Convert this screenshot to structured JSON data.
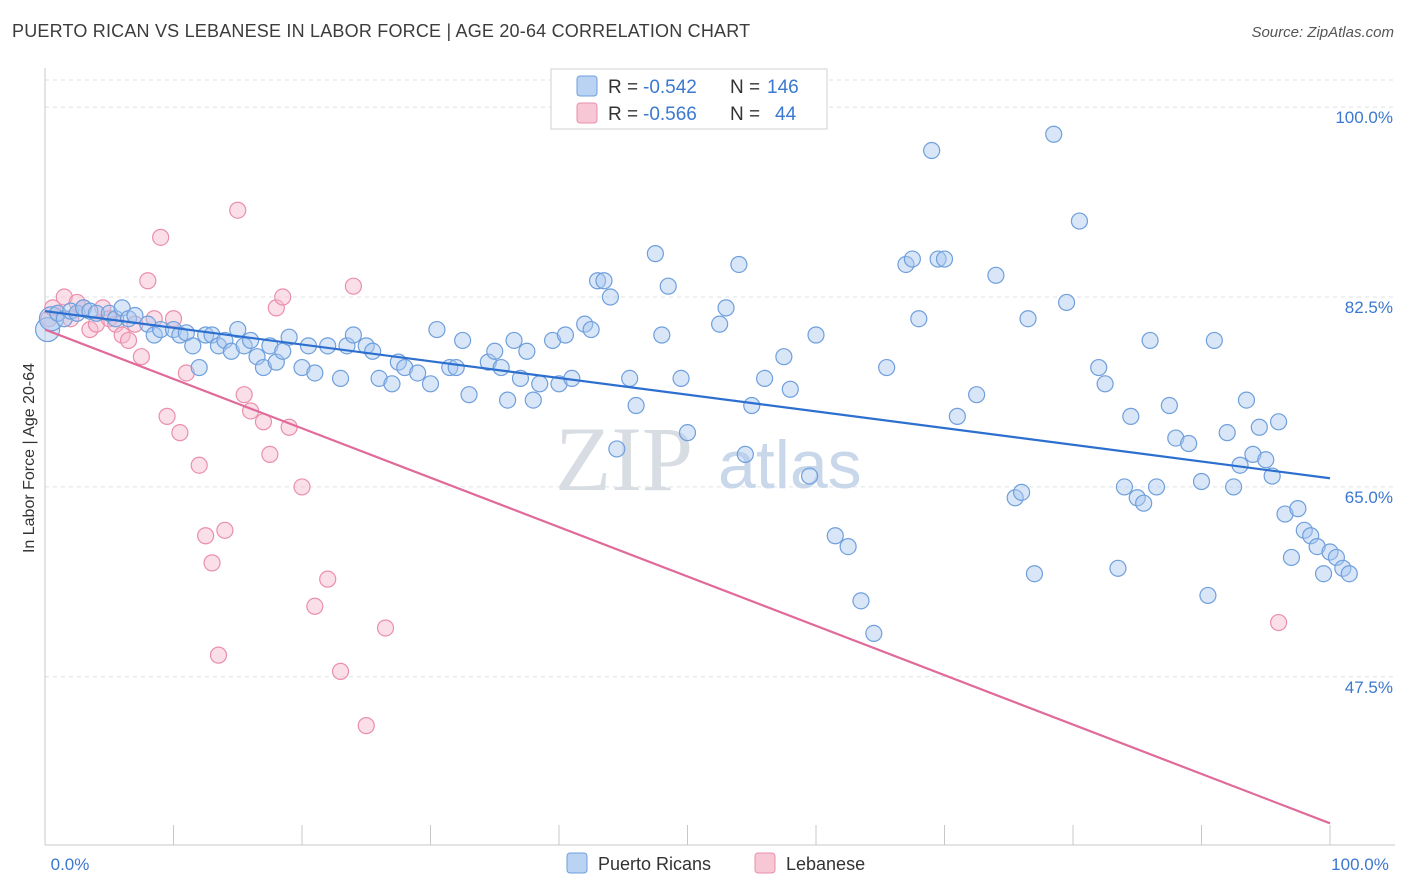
{
  "title": "PUERTO RICAN VS LEBANESE IN LABOR FORCE | AGE 20-64 CORRELATION CHART",
  "source": "Source: ZipAtlas.com",
  "colors": {
    "blue_fill": "#a9c8f0",
    "blue_stroke": "#6f9fdc",
    "blue_line": "#2c6fcf",
    "pink_fill": "#f6b9cc",
    "pink_stroke": "#ea8fab",
    "pink_line": "#e06a99",
    "axis_text": "#3b78d0"
  },
  "legend": {
    "rows": [
      {
        "r_label": "R =",
        "r_value": "-0.542",
        "n_label": "N =",
        "n_value": "146"
      },
      {
        "r_label": "R =",
        "r_value": "-0.566",
        "n_label": "N =",
        "n_value": "44"
      }
    ]
  },
  "bottom_legend": [
    "Puerto Ricans",
    "Lebanese"
  ],
  "watermark": {
    "zip": "ZIP",
    "atlas": "atlas"
  },
  "chart_data": {
    "type": "scatter",
    "title": "PUERTO RICAN VS LEBANESE IN LABOR FORCE | AGE 20-64 CORRELATION CHART",
    "xlabel": "",
    "ylabel": "In Labor Force | Age 20-64",
    "xlim": [
      0,
      100
    ],
    "ylim": [
      32,
      102.5
    ],
    "x_tick_labels": [
      "0.0%",
      "100.0%"
    ],
    "y_ticks": [
      47.5,
      65.0,
      82.5,
      100.0
    ],
    "y_tick_labels": [
      "47.5%",
      "65.0%",
      "82.5%",
      "100.0%"
    ],
    "grid": true,
    "series": [
      {
        "name": "Puerto Ricans",
        "color": "#a9c8f0",
        "r": -0.542,
        "n": 146,
        "trend": {
          "x": [
            0,
            100
          ],
          "y": [
            81.2,
            65.8
          ]
        },
        "points": [
          [
            0.2,
            79.5
          ],
          [
            0.5,
            80.5
          ],
          [
            1.0,
            81.0
          ],
          [
            1.5,
            80.5
          ],
          [
            2.0,
            81.2
          ],
          [
            2.5,
            81.0
          ],
          [
            3.0,
            81.5
          ],
          [
            3.5,
            81.2
          ],
          [
            4.0,
            81.0
          ],
          [
            5.0,
            81.0
          ],
          [
            5.5,
            80.5
          ],
          [
            6.0,
            81.5
          ],
          [
            6.5,
            80.5
          ],
          [
            7.0,
            80.8
          ],
          [
            8.0,
            80.0
          ],
          [
            8.5,
            79.0
          ],
          [
            9.0,
            79.5
          ],
          [
            10.0,
            79.5
          ],
          [
            10.5,
            79.0
          ],
          [
            11.0,
            79.2
          ],
          [
            11.5,
            78.0
          ],
          [
            12.0,
            76.0
          ],
          [
            12.5,
            79.0
          ],
          [
            13.0,
            79.0
          ],
          [
            13.5,
            78.0
          ],
          [
            14.0,
            78.5
          ],
          [
            14.5,
            77.5
          ],
          [
            15.0,
            79.5
          ],
          [
            15.5,
            78.0
          ],
          [
            16.0,
            78.5
          ],
          [
            16.5,
            77.0
          ],
          [
            17.0,
            76.0
          ],
          [
            17.5,
            78.0
          ],
          [
            18.0,
            76.5
          ],
          [
            18.5,
            77.5
          ],
          [
            19.0,
            78.8
          ],
          [
            20.0,
            76.0
          ],
          [
            20.5,
            78.0
          ],
          [
            21.0,
            75.5
          ],
          [
            22.0,
            78.0
          ],
          [
            23.0,
            75.0
          ],
          [
            23.5,
            78.0
          ],
          [
            24.0,
            79.0
          ],
          [
            25.0,
            78.0
          ],
          [
            25.5,
            77.5
          ],
          [
            26.0,
            75.0
          ],
          [
            27.0,
            74.5
          ],
          [
            27.5,
            76.5
          ],
          [
            28.0,
            76.0
          ],
          [
            29.0,
            75.5
          ],
          [
            30.0,
            74.5
          ],
          [
            30.5,
            79.5
          ],
          [
            31.5,
            76.0
          ],
          [
            32.0,
            76.0
          ],
          [
            32.5,
            78.5
          ],
          [
            33.0,
            73.5
          ],
          [
            34.5,
            76.5
          ],
          [
            35.0,
            77.5
          ],
          [
            35.5,
            76.0
          ],
          [
            36.0,
            73.0
          ],
          [
            36.5,
            78.5
          ],
          [
            37.0,
            75.0
          ],
          [
            37.5,
            77.5
          ],
          [
            38.0,
            73.0
          ],
          [
            38.5,
            74.5
          ],
          [
            39.5,
            78.5
          ],
          [
            40.0,
            74.5
          ],
          [
            40.5,
            79.0
          ],
          [
            41.0,
            75.0
          ],
          [
            42.0,
            80.0
          ],
          [
            42.5,
            79.5
          ],
          [
            43.0,
            84.0
          ],
          [
            43.5,
            84.0
          ],
          [
            44.0,
            82.5
          ],
          [
            44.5,
            68.5
          ],
          [
            45.5,
            75.0
          ],
          [
            46.0,
            72.5
          ],
          [
            47.5,
            86.5
          ],
          [
            48.0,
            79.0
          ],
          [
            48.5,
            83.5
          ],
          [
            49.5,
            75.0
          ],
          [
            50.0,
            70.0
          ],
          [
            52.5,
            80.0
          ],
          [
            53.0,
            81.5
          ],
          [
            54.0,
            85.5
          ],
          [
            54.5,
            68.0
          ],
          [
            55.0,
            72.5
          ],
          [
            56.0,
            75.0
          ],
          [
            57.5,
            77.0
          ],
          [
            58.0,
            74.0
          ],
          [
            59.5,
            66.0
          ],
          [
            60.0,
            79.0
          ],
          [
            61.5,
            60.5
          ],
          [
            62.5,
            59.5
          ],
          [
            63.5,
            54.5
          ],
          [
            64.5,
            51.5
          ],
          [
            65.5,
            76.0
          ],
          [
            67.0,
            85.5
          ],
          [
            67.5,
            86.0
          ],
          [
            68.0,
            80.5
          ],
          [
            69.0,
            96.0
          ],
          [
            69.5,
            86.0
          ],
          [
            70.0,
            86.0
          ],
          [
            71.0,
            71.5
          ],
          [
            72.5,
            73.5
          ],
          [
            74.0,
            84.5
          ],
          [
            75.5,
            64.0
          ],
          [
            76.0,
            64.5
          ],
          [
            76.5,
            80.5
          ],
          [
            77.0,
            57.0
          ],
          [
            78.5,
            97.5
          ],
          [
            79.5,
            82.0
          ],
          [
            80.5,
            89.5
          ],
          [
            82.0,
            76.0
          ],
          [
            82.5,
            74.5
          ],
          [
            83.5,
            57.5
          ],
          [
            84.0,
            65.0
          ],
          [
            84.5,
            71.5
          ],
          [
            85.0,
            64.0
          ],
          [
            85.5,
            63.5
          ],
          [
            86.0,
            78.5
          ],
          [
            86.5,
            65.0
          ],
          [
            87.5,
            72.5
          ],
          [
            88.0,
            69.5
          ],
          [
            89.0,
            69.0
          ],
          [
            90.0,
            65.5
          ],
          [
            90.5,
            55.0
          ],
          [
            91.0,
            78.5
          ],
          [
            92.0,
            70.0
          ],
          [
            92.5,
            65.0
          ],
          [
            93.0,
            67.0
          ],
          [
            93.5,
            73.0
          ],
          [
            94.0,
            68.0
          ],
          [
            94.5,
            70.5
          ],
          [
            95.0,
            67.5
          ],
          [
            95.5,
            66.0
          ],
          [
            96.0,
            71.0
          ],
          [
            96.5,
            62.5
          ],
          [
            97.0,
            58.5
          ],
          [
            97.5,
            63.0
          ],
          [
            98.0,
            61.0
          ],
          [
            98.5,
            60.5
          ],
          [
            99.0,
            59.5
          ],
          [
            99.5,
            57.0
          ],
          [
            100.0,
            59.0
          ],
          [
            100.5,
            58.5
          ],
          [
            101.0,
            57.5
          ],
          [
            101.5,
            57.0
          ]
        ]
      },
      {
        "name": "Lebanese",
        "color": "#f6b9cc",
        "r": -0.566,
        "n": 44,
        "trend": {
          "x": [
            0,
            100
          ],
          "y": [
            79.5,
            34.0
          ]
        },
        "points": [
          [
            0.3,
            80.5
          ],
          [
            0.6,
            81.5
          ],
          [
            1.0,
            81.0
          ],
          [
            1.5,
            82.5
          ],
          [
            2.0,
            80.5
          ],
          [
            2.5,
            82.0
          ],
          [
            3.0,
            81.5
          ],
          [
            3.5,
            79.5
          ],
          [
            4.0,
            80.0
          ],
          [
            4.5,
            81.5
          ],
          [
            5.0,
            80.5
          ],
          [
            5.5,
            80.0
          ],
          [
            6.0,
            79.0
          ],
          [
            6.5,
            78.5
          ],
          [
            7.0,
            80.0
          ],
          [
            7.5,
            77.0
          ],
          [
            8.0,
            84.0
          ],
          [
            8.5,
            80.5
          ],
          [
            9.0,
            88.0
          ],
          [
            9.5,
            71.5
          ],
          [
            10.0,
            80.5
          ],
          [
            10.5,
            70.0
          ],
          [
            11.0,
            75.5
          ],
          [
            12.0,
            67.0
          ],
          [
            12.5,
            60.5
          ],
          [
            13.0,
            58.0
          ],
          [
            13.5,
            49.5
          ],
          [
            14.0,
            61.0
          ],
          [
            15.0,
            90.5
          ],
          [
            15.5,
            73.5
          ],
          [
            16.0,
            72.0
          ],
          [
            17.0,
            71.0
          ],
          [
            17.5,
            68.0
          ],
          [
            18.0,
            81.5
          ],
          [
            18.5,
            82.5
          ],
          [
            19.0,
            70.5
          ],
          [
            20.0,
            65.0
          ],
          [
            21.0,
            54.0
          ],
          [
            22.0,
            56.5
          ],
          [
            23.0,
            48.0
          ],
          [
            24.0,
            83.5
          ],
          [
            25.0,
            43.0
          ],
          [
            26.5,
            52.0
          ],
          [
            96.0,
            52.5
          ]
        ]
      }
    ]
  }
}
